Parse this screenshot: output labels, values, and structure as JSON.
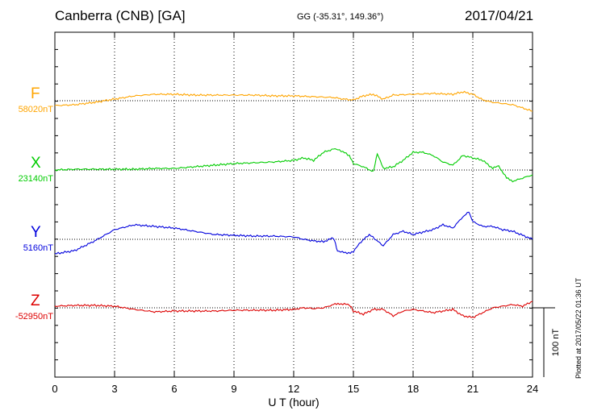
{
  "header": {
    "station": "Canberra (CNB)  [GA]",
    "coords": "GG (-35.31°, 149.36°)",
    "date": "2017/04/21"
  },
  "footer": {
    "plotted": "Plotted at 2017/05/22 01:36 UT"
  },
  "chart_data": {
    "type": "line",
    "title": "Canberra (CNB)  [GA]",
    "xlabel": "U T (hour)",
    "ylabel": "",
    "xlim": [
      0,
      24
    ],
    "x_ticks": [
      0,
      3,
      6,
      9,
      12,
      15,
      18,
      21,
      24
    ],
    "x_tick_labels": [
      "0",
      "3",
      "6",
      "9",
      "12",
      "15",
      "18",
      "21",
      "24"
    ],
    "scale_bar": "100 nT",
    "grid": true,
    "colors": {
      "F": "#ffa500",
      "X": "#00cc00",
      "Y": "#0000dd",
      "Z": "#dd0000"
    },
    "series": [
      {
        "name": "F",
        "baseline": "58020nT",
        "x": [
          0,
          1,
          2,
          3,
          4,
          5,
          6,
          7,
          8,
          9,
          10,
          11,
          12,
          13,
          14,
          14.5,
          15,
          15.5,
          16,
          16.5,
          17,
          18,
          19,
          20,
          20.5,
          21,
          21.5,
          22,
          23,
          24
        ],
        "values": [
          -6,
          -5,
          -2,
          2,
          6,
          8,
          8,
          7,
          7,
          7,
          7,
          6,
          6,
          5,
          4,
          2,
          1,
          6,
          8,
          2,
          7,
          8,
          9,
          8,
          11,
          8,
          1,
          -2,
          -5,
          -13
        ]
      },
      {
        "name": "X",
        "baseline": "23140nT",
        "x": [
          0,
          1,
          2,
          3,
          4,
          5,
          6,
          7,
          8,
          9,
          10,
          11,
          12,
          12.5,
          13,
          13.5,
          14,
          14.3,
          14.8,
          15,
          15.5,
          16,
          16.2,
          16.5,
          17,
          17.5,
          18,
          18.5,
          19,
          19.5,
          20,
          20.5,
          21,
          21.5,
          22,
          22.3,
          22.7,
          23,
          24
        ],
        "values": [
          0,
          1,
          1,
          1,
          1,
          2,
          2,
          4,
          6,
          8,
          9,
          10,
          12,
          15,
          12,
          22,
          26,
          25,
          18,
          8,
          4,
          -2,
          20,
          2,
          4,
          12,
          22,
          22,
          18,
          10,
          6,
          18,
          15,
          12,
          2,
          5,
          -10,
          -14,
          -6
        ]
      },
      {
        "name": "Y",
        "baseline": "5160nT",
        "x": [
          0,
          1,
          2,
          3,
          4,
          5,
          6,
          7,
          8,
          9,
          10,
          11,
          12,
          12.5,
          13,
          13.5,
          14,
          14.2,
          14.6,
          15,
          15.3,
          15.8,
          16.5,
          17,
          17.5,
          18,
          19,
          19.5,
          20,
          20.5,
          20.8,
          21,
          21.5,
          22,
          22.5,
          23,
          24
        ],
        "values": [
          -18,
          -14,
          -2,
          12,
          18,
          16,
          14,
          10,
          6,
          5,
          4,
          4,
          3,
          0,
          -2,
          -3,
          2,
          -14,
          -17,
          -16,
          -5,
          6,
          -8,
          6,
          10,
          6,
          12,
          18,
          14,
          28,
          34,
          22,
          16,
          16,
          12,
          10,
          0
        ]
      },
      {
        "name": "Z",
        "baseline": "-52950nT",
        "x": [
          0,
          1,
          2,
          3,
          4,
          5,
          6,
          7,
          8,
          9,
          10,
          11,
          12,
          12.5,
          13,
          13.5,
          14,
          14.3,
          14.8,
          15,
          15.5,
          16,
          16.5,
          17,
          17.5,
          18,
          19,
          19.5,
          20,
          20.5,
          21,
          21.5,
          22,
          22.5,
          23,
          23.5,
          24
        ],
        "values": [
          2,
          3,
          3,
          2,
          -2,
          -5,
          -4,
          -4,
          -4,
          -3,
          -3,
          -3,
          -2,
          0,
          -1,
          0,
          4,
          5,
          4,
          -4,
          -8,
          -2,
          -2,
          -10,
          -4,
          -2,
          -6,
          -4,
          -2,
          -10,
          -12,
          -6,
          0,
          2,
          4,
          2,
          8
        ]
      }
    ]
  }
}
